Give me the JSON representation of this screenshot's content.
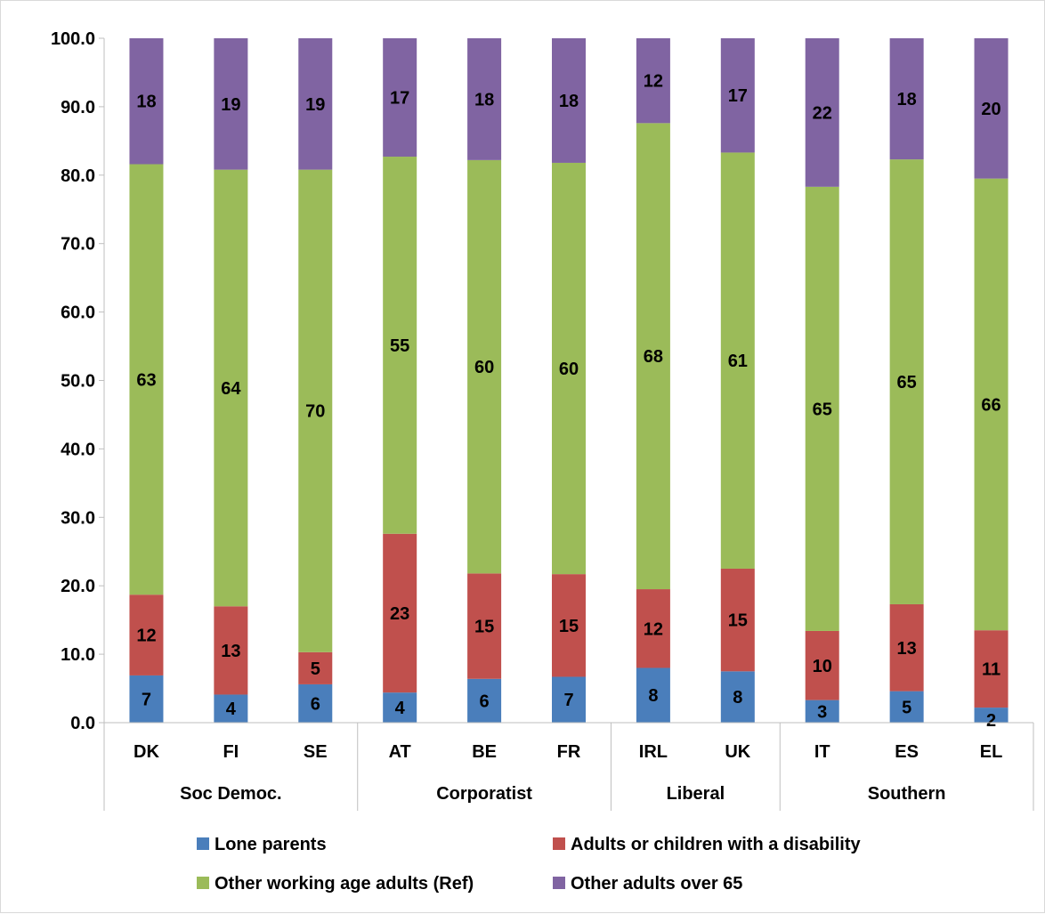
{
  "chart_data": {
    "type": "bar",
    "stacked": true,
    "categories": [
      "DK",
      "FI",
      "SE",
      "AT",
      "BE",
      "FR",
      "IRL",
      "UK",
      "IT",
      "ES",
      "EL"
    ],
    "groups": [
      {
        "name": "Soc Democ.",
        "count": 3
      },
      {
        "name": "Corporatist",
        "count": 3
      },
      {
        "name": "Liberal",
        "count": 2
      },
      {
        "name": "Southern",
        "count": 3
      }
    ],
    "series": [
      {
        "name": "Lone parents",
        "color": "#4a7ebb",
        "values": [
          6.9,
          4.1,
          5.6,
          4.4,
          6.4,
          6.7,
          8.0,
          7.5,
          3.3,
          4.6,
          2.2
        ],
        "labels": [
          "7",
          "4",
          "6",
          "4",
          "6",
          "7",
          "8",
          "8",
          "3",
          "5",
          "2"
        ]
      },
      {
        "name": "Adults or children with a disability",
        "color": "#c0504d",
        "values": [
          11.8,
          12.9,
          4.7,
          23.2,
          15.4,
          15.0,
          11.5,
          15.0,
          10.1,
          12.7,
          11.3
        ],
        "labels": [
          "12",
          "13",
          "5",
          "23",
          "15",
          "15",
          "12",
          "15",
          "10",
          "13",
          "11"
        ]
      },
      {
        "name": "Other working age adults (Ref)",
        "color": "#9bbb59",
        "values": [
          62.9,
          63.8,
          70.5,
          55.1,
          60.4,
          60.1,
          68.1,
          60.8,
          64.9,
          65.0,
          66.0
        ],
        "labels": [
          "63",
          "64",
          "70",
          "55",
          "60",
          "60",
          "68",
          "61",
          "65",
          "65",
          "66"
        ]
      },
      {
        "name": "Other adults over 65",
        "color": "#8064a2",
        "values": [
          18.4,
          19.2,
          19.2,
          17.3,
          17.8,
          18.2,
          12.4,
          16.7,
          21.7,
          17.7,
          20.5
        ],
        "labels": [
          "18",
          "19",
          "19",
          "17",
          "18",
          "18",
          "12",
          "17",
          "22",
          "18",
          "20"
        ]
      }
    ],
    "y_ticks": [
      "0.0",
      "10.0",
      "20.0",
      "30.0",
      "40.0",
      "50.0",
      "60.0",
      "70.0",
      "80.0",
      "90.0",
      "100.0"
    ],
    "ylim": [
      0,
      100
    ],
    "grid": false,
    "legend_position": "bottom"
  }
}
